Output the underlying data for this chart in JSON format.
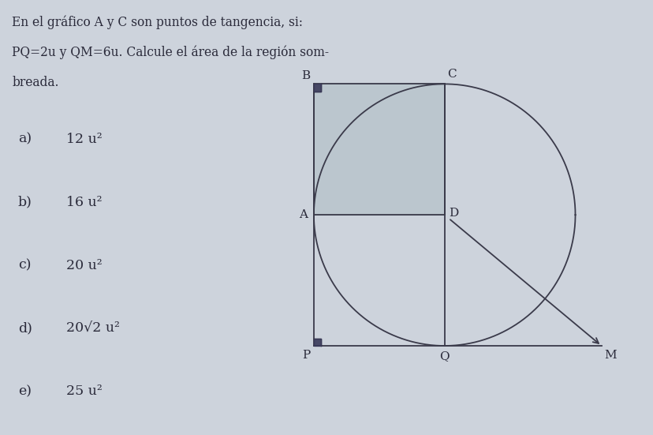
{
  "background_color": "#cdd3dc",
  "line_color": "#3a3a4a",
  "shaded_color": "#b8c4cc",
  "label_fontsize": 11,
  "text_color": "#2a2a3a",
  "fig_width": 8.29,
  "fig_height": 5.51,
  "dpi": 100,
  "text_problem_line1": "En el gráfico A y C son puntos de tangencia, si:",
  "text_problem_line2": "PQ=2u y QM=6u. Calcule el área de la región som-",
  "text_problem_line3": "breada.",
  "answers": [
    [
      "a)",
      "12 u²"
    ],
    [
      "b)",
      "16 u²"
    ],
    [
      "c)",
      "20 u²"
    ],
    [
      "d)",
      "20√2 u²"
    ],
    [
      "e)",
      "25 u²"
    ]
  ]
}
